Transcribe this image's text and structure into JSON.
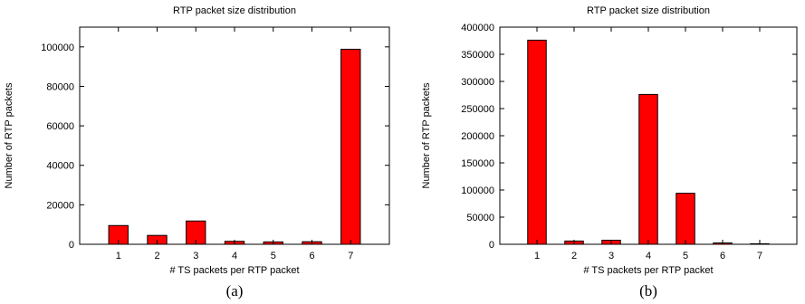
{
  "figure": {
    "captions": [
      "(a)",
      "(b)"
    ]
  },
  "chart_data": [
    {
      "type": "bar",
      "title": "RTP packet size distribution",
      "xlabel": "# TS packets per RTP packet",
      "ylabel": "Number of RTP packets",
      "categories": [
        "1",
        "2",
        "3",
        "4",
        "5",
        "6",
        "7"
      ],
      "values": [
        9500,
        4500,
        11800,
        1500,
        1200,
        1300,
        98800
      ],
      "ylim": [
        0,
        110000
      ],
      "yticks": [
        0,
        20000,
        40000,
        60000,
        80000,
        100000
      ],
      "xlim": [
        0,
        8
      ],
      "bar_color": "#ff0000",
      "grid": false,
      "caption": "(a)"
    },
    {
      "type": "bar",
      "title": "RTP packet size distribution",
      "xlabel": "# TS packets per RTP packet",
      "ylabel": "Number of RTP packets",
      "categories": [
        "1",
        "2",
        "3",
        "4",
        "5",
        "6",
        "7"
      ],
      "values": [
        376000,
        6000,
        7500,
        276000,
        94000,
        2500,
        1000
      ],
      "ylim": [
        0,
        400000
      ],
      "yticks": [
        0,
        50000,
        100000,
        150000,
        200000,
        250000,
        300000,
        350000,
        400000
      ],
      "xlim": [
        0,
        8
      ],
      "bar_color": "#ff0000",
      "grid": false,
      "caption": "(b)"
    }
  ]
}
